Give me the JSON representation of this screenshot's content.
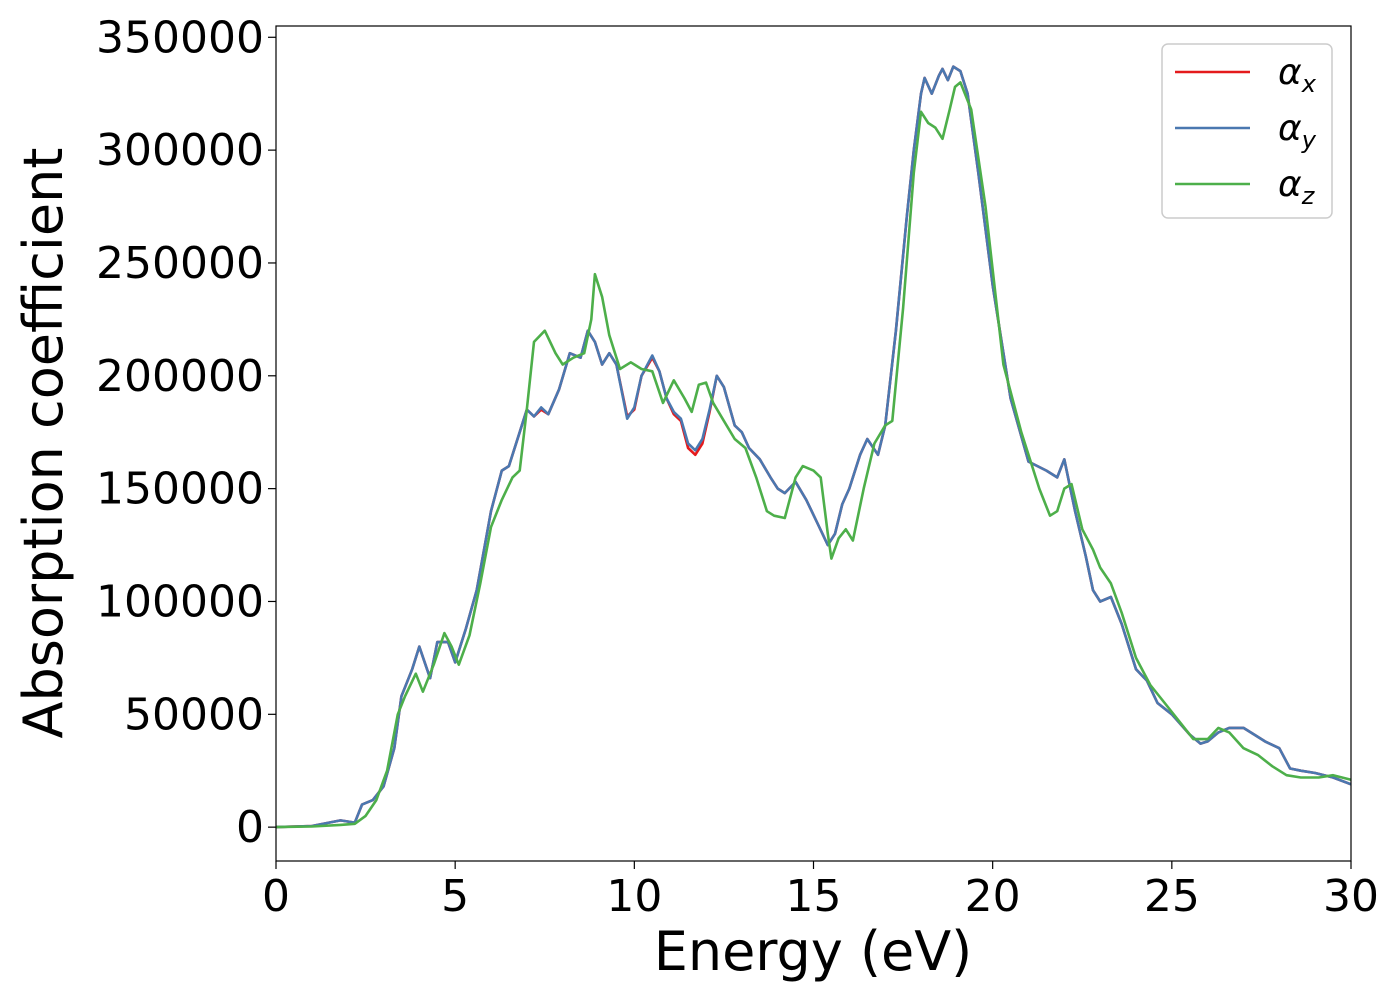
{
  "chart_data": {
    "type": "line",
    "title": "",
    "xlabel": "Energy (eV)",
    "ylabel": "Absorption coefficient",
    "xlim": [
      0,
      30
    ],
    "ylim": [
      -15000,
      355000
    ],
    "xticks": [
      0,
      5,
      10,
      15,
      20,
      25,
      30
    ],
    "xtick_labels": [
      "0",
      "5",
      "10",
      "15",
      "20",
      "25",
      "30"
    ],
    "yticks": [
      0,
      50000,
      100000,
      150000,
      200000,
      250000,
      300000,
      350000
    ],
    "ytick_labels": [
      "0",
      "50000",
      "100000",
      "150000",
      "200000",
      "250000",
      "300000",
      "350000"
    ],
    "grid": false,
    "legend_position": "top-right",
    "series": [
      {
        "name": "αx",
        "legend_base": "α",
        "legend_sub": "x",
        "color": "#e41a1c",
        "x": [
          0,
          1,
          1.8,
          2.2,
          2.4,
          2.7,
          3,
          3.3,
          3.5,
          3.8,
          4,
          4.3,
          4.5,
          4.8,
          5,
          5.3,
          5.6,
          6,
          6.3,
          6.5,
          6.8,
          7,
          7.2,
          7.4,
          7.6,
          7.9,
          8.2,
          8.5,
          8.7,
          8.9,
          9.1,
          9.3,
          9.5,
          9.8,
          10,
          10.2,
          10.5,
          10.7,
          10.9,
          11.1,
          11.3,
          11.5,
          11.7,
          11.9,
          12.1,
          12.3,
          12.5,
          12.8,
          13,
          13.2,
          13.5,
          13.8,
          14,
          14.2,
          14.5,
          14.8,
          15.1,
          15.4,
          15.6,
          15.8,
          16,
          16.3,
          16.5,
          16.8,
          17,
          17.3,
          17.6,
          17.8,
          18,
          18.1,
          18.3,
          18.5,
          18.6,
          18.75,
          18.9,
          19.1,
          19.3,
          19.6,
          20,
          20.5,
          21,
          21.5,
          21.8,
          22,
          22.3,
          22.6,
          22.8,
          23,
          23.3,
          23.6,
          24,
          24.3,
          24.6,
          25,
          25.5,
          25.8,
          26,
          26.3,
          26.6,
          27,
          27.3,
          27.6,
          28,
          28.3,
          28.6,
          29,
          29.5,
          30
        ],
        "y": [
          0,
          500,
          3000,
          2000,
          10000,
          12000,
          18000,
          35000,
          58000,
          70000,
          80000,
          66000,
          82000,
          82000,
          73000,
          88000,
          105000,
          140000,
          158000,
          160000,
          175000,
          185000,
          182000,
          185000,
          183000,
          194000,
          210000,
          208000,
          220000,
          215000,
          205000,
          210000,
          205000,
          182000,
          185000,
          200000,
          208000,
          202000,
          190000,
          183000,
          180000,
          168000,
          165000,
          170000,
          184000,
          200000,
          195000,
          178000,
          175000,
          168000,
          163000,
          155000,
          150000,
          148000,
          153000,
          145000,
          135000,
          125000,
          130000,
          143000,
          150000,
          165000,
          172000,
          165000,
          178000,
          220000,
          270000,
          300000,
          325000,
          332000,
          325000,
          333000,
          336000,
          331000,
          337000,
          335000,
          325000,
          290000,
          240000,
          190000,
          162000,
          158000,
          155000,
          163000,
          140000,
          120000,
          105000,
          100000,
          102000,
          90000,
          70000,
          65000,
          55000,
          50000,
          41000,
          37000,
          38000,
          42000,
          44000,
          44000,
          41000,
          38000,
          35000,
          26000,
          25000,
          24000,
          22000,
          19000
        ]
      },
      {
        "name": "αy",
        "legend_base": "α",
        "legend_sub": "y",
        "color": "#4a78b0",
        "x": [
          0,
          1,
          1.8,
          2.2,
          2.4,
          2.7,
          3,
          3.3,
          3.5,
          3.8,
          4,
          4.3,
          4.5,
          4.8,
          5,
          5.3,
          5.6,
          6,
          6.3,
          6.5,
          6.8,
          7,
          7.2,
          7.4,
          7.6,
          7.9,
          8.2,
          8.5,
          8.7,
          8.9,
          9.1,
          9.3,
          9.5,
          9.8,
          10,
          10.2,
          10.5,
          10.7,
          10.9,
          11.1,
          11.3,
          11.5,
          11.7,
          11.9,
          12.1,
          12.3,
          12.5,
          12.8,
          13,
          13.2,
          13.5,
          13.8,
          14,
          14.2,
          14.5,
          14.8,
          15.1,
          15.4,
          15.6,
          15.8,
          16,
          16.3,
          16.5,
          16.8,
          17,
          17.3,
          17.6,
          17.8,
          18,
          18.1,
          18.3,
          18.5,
          18.6,
          18.75,
          18.9,
          19.1,
          19.3,
          19.6,
          20,
          20.5,
          21,
          21.5,
          21.8,
          22,
          22.3,
          22.6,
          22.8,
          23,
          23.3,
          23.6,
          24,
          24.3,
          24.6,
          25,
          25.5,
          25.8,
          26,
          26.3,
          26.6,
          27,
          27.3,
          27.6,
          28,
          28.3,
          28.6,
          29,
          29.5,
          30
        ],
        "y": [
          0,
          500,
          3000,
          2000,
          10000,
          12000,
          18000,
          35000,
          58000,
          70000,
          80000,
          66000,
          82000,
          82000,
          73000,
          88000,
          105000,
          140000,
          158000,
          160000,
          175000,
          185000,
          182000,
          186000,
          183000,
          194000,
          210000,
          208000,
          220000,
          215000,
          205000,
          210000,
          205000,
          181000,
          186000,
          200000,
          209000,
          202000,
          190000,
          184000,
          181000,
          170000,
          167000,
          172000,
          185000,
          200000,
          195000,
          178000,
          175000,
          168000,
          163000,
          155000,
          150000,
          148000,
          153000,
          145000,
          135000,
          125000,
          130000,
          143000,
          150000,
          165000,
          172000,
          165000,
          178000,
          220000,
          270000,
          300000,
          325000,
          332000,
          325000,
          333000,
          336000,
          331000,
          337000,
          335000,
          325000,
          290000,
          240000,
          190000,
          162000,
          158000,
          155000,
          163000,
          140000,
          120000,
          105000,
          100000,
          102000,
          90000,
          70000,
          65000,
          55000,
          50000,
          41000,
          37000,
          38000,
          42000,
          44000,
          44000,
          41000,
          38000,
          35000,
          26000,
          25000,
          24000,
          22000,
          19000
        ]
      },
      {
        "name": "αz",
        "legend_base": "α",
        "legend_sub": "z",
        "color": "#4daf4a",
        "x": [
          0,
          1,
          1.8,
          2.2,
          2.5,
          2.8,
          3.1,
          3.4,
          3.6,
          3.9,
          4.1,
          4.4,
          4.7,
          4.9,
          5.1,
          5.4,
          5.7,
          6,
          6.3,
          6.6,
          6.8,
          7,
          7.2,
          7.5,
          7.8,
          8,
          8.3,
          8.6,
          8.8,
          8.9,
          9.1,
          9.3,
          9.6,
          9.9,
          10.2,
          10.5,
          10.8,
          11.1,
          11.4,
          11.6,
          11.8,
          12,
          12.2,
          12.5,
          12.8,
          13.1,
          13.4,
          13.7,
          13.9,
          14.2,
          14.5,
          14.7,
          15,
          15.2,
          15.4,
          15.5,
          15.7,
          15.9,
          16.1,
          16.4,
          16.7,
          17,
          17.2,
          17.5,
          17.8,
          18,
          18.2,
          18.4,
          18.6,
          18.8,
          18.95,
          19.1,
          19.4,
          19.8,
          20.3,
          20.8,
          21.3,
          21.6,
          21.8,
          22,
          22.2,
          22.5,
          22.8,
          23,
          23.3,
          23.6,
          24,
          24.4,
          24.8,
          25.2,
          25.6,
          26,
          26.3,
          26.6,
          27,
          27.4,
          27.8,
          28.2,
          28.6,
          29.1,
          29.5,
          30
        ],
        "y": [
          0,
          300,
          1000,
          1500,
          5000,
          12000,
          25000,
          50000,
          58000,
          68000,
          60000,
          72000,
          86000,
          80000,
          72000,
          85000,
          108000,
          133000,
          145000,
          155000,
          158000,
          185000,
          215000,
          220000,
          210000,
          205000,
          208000,
          210000,
          225000,
          245000,
          235000,
          218000,
          203000,
          206000,
          203000,
          202000,
          188000,
          198000,
          190000,
          184000,
          196000,
          197000,
          188000,
          180000,
          172000,
          168000,
          155000,
          140000,
          138000,
          137000,
          155000,
          160000,
          158000,
          155000,
          130000,
          119000,
          128000,
          132000,
          127000,
          150000,
          170000,
          178000,
          180000,
          230000,
          290000,
          317000,
          312000,
          310000,
          305000,
          318000,
          328000,
          330000,
          318000,
          275000,
          205000,
          175000,
          150000,
          138000,
          140000,
          150000,
          152000,
          132000,
          123000,
          115000,
          108000,
          95000,
          75000,
          63000,
          55000,
          47000,
          39000,
          39000,
          44000,
          42000,
          35000,
          32000,
          27000,
          23000,
          22000,
          22000,
          23000,
          21000
        ]
      }
    ]
  }
}
